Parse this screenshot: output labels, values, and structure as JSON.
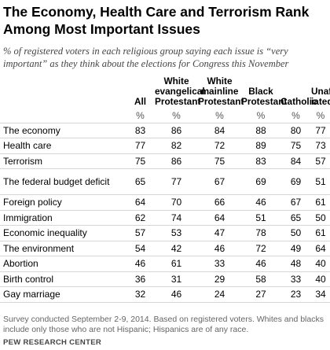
{
  "chart_data": {
    "type": "table",
    "title": "The Economy, Health Care and Terrorism Rank Among Most Important Issues",
    "subtitle": "% of registered voters in each religious group saying each issue is “very important” as they think about the elections for Congress this November",
    "unit_row": "%",
    "columns": [
      "All",
      "White evangelical Protestant",
      "White mainline Protestant",
      "Black Protestant",
      "Catholic",
      "Unaffil-iated"
    ],
    "rows": [
      {
        "label": "The economy",
        "values": [
          "83",
          "86",
          "84",
          "88",
          "80",
          "77"
        ]
      },
      {
        "label": "Health care",
        "values": [
          "77",
          "82",
          "72",
          "89",
          "75",
          "73"
        ]
      },
      {
        "label": "Terrorism",
        "values": [
          "75",
          "86",
          "75",
          "83",
          "84",
          "57"
        ]
      },
      {
        "label": "The federal budget deficit",
        "values": [
          "65",
          "77",
          "67",
          "69",
          "69",
          "51"
        ]
      },
      {
        "label": "Foreign policy",
        "values": [
          "64",
          "70",
          "66",
          "46",
          "67",
          "61"
        ]
      },
      {
        "label": "Immigration",
        "values": [
          "62",
          "74",
          "64",
          "51",
          "65",
          "50"
        ]
      },
      {
        "label": "Economic inequality",
        "values": [
          "57",
          "53",
          "47",
          "78",
          "50",
          "61"
        ]
      },
      {
        "label": "The environment",
        "values": [
          "54",
          "42",
          "46",
          "72",
          "49",
          "64"
        ]
      },
      {
        "label": "Abortion",
        "values": [
          "46",
          "61",
          "33",
          "46",
          "48",
          "40"
        ]
      },
      {
        "label": "Birth control",
        "values": [
          "36",
          "31",
          "29",
          "58",
          "33",
          "40"
        ]
      },
      {
        "label": "Gay marriage",
        "values": [
          "32",
          "46",
          "24",
          "27",
          "23",
          "34"
        ]
      }
    ],
    "note": "Survey conducted September 2-9, 2014. Based on registered voters. Whites and blacks include only those who are not Hispanic; Hispanics are of any race.",
    "source": "PEW RESEARCH CENTER"
  }
}
